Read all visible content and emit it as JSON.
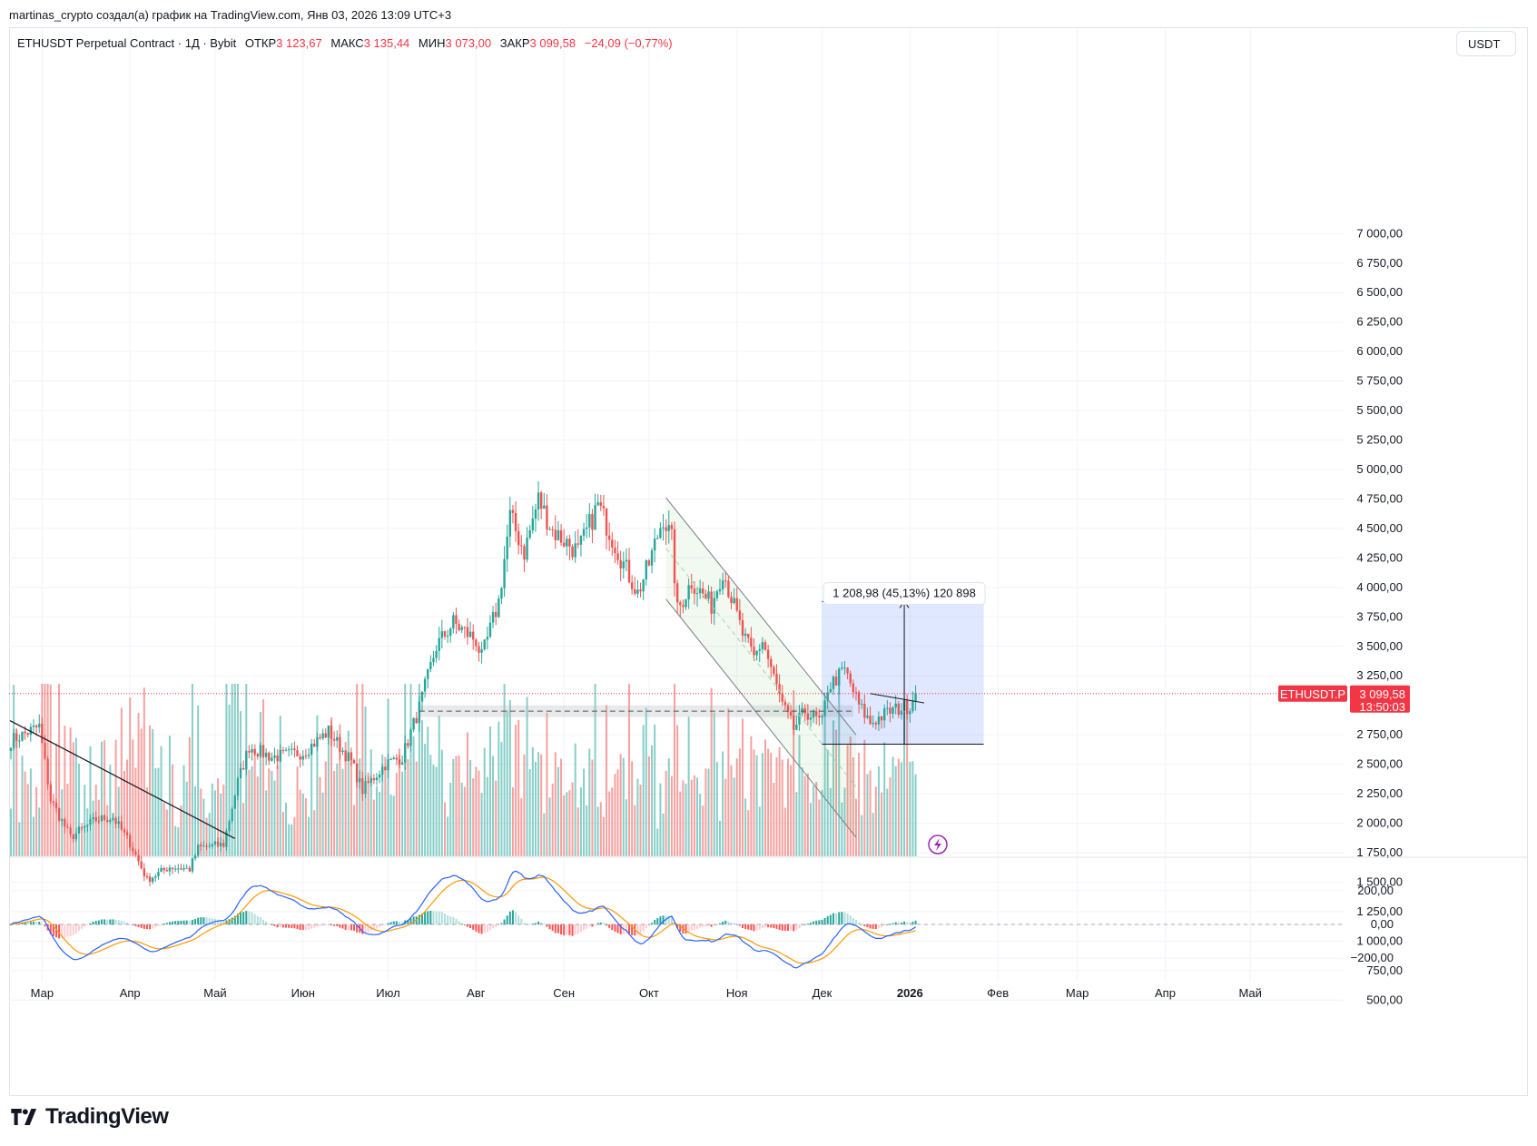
{
  "header": {
    "attribution": "martinas_crypto создал(а) график на TradingView.com, Янв 03, 2026 13:09 UTC+3"
  },
  "legend": {
    "symbol": "ETHUSDT Perpetual Contract · 1Д · Bybit",
    "open_label": "ОТКР",
    "open_value": "3 123,67",
    "high_label": "МАКС",
    "high_value": "3 135,44",
    "low_label": "МИН",
    "low_value": "3 073,00",
    "close_label": "ЗАКР",
    "close_value": "3 099,58",
    "change": "−24,09 (−0,77%)"
  },
  "currency_button": "USDT",
  "price_tag": {
    "symbol": "ETHUSDT.P",
    "price": "3 099,58",
    "countdown": "13:50:03"
  },
  "measure_label": "1 208,98 (45,13%) 120 898",
  "brand": {
    "name": "TradingView"
  },
  "colors": {
    "up": "#26a69a",
    "down": "#ef5350",
    "accent": "#f23645",
    "macd": "#2962ff",
    "signal": "#ff9800"
  },
  "chart_data": {
    "type": "candlestick",
    "price_axis_ticks": [
      "7 000,00",
      "6 750,00",
      "6 500,00",
      "6 250,00",
      "6 000,00",
      "5 750,00",
      "5 500,00",
      "5 250,00",
      "5 000,00",
      "4 750,00",
      "4 500,00",
      "4 250,00",
      "4 000,00",
      "3 750,00",
      "3 500,00",
      "3 250,00",
      "2 750,00",
      "2 500,00",
      "2 250,00",
      "2 000,00",
      "1 750,00",
      "1 500,00",
      "1 250,00",
      "1 000,00",
      "750,00",
      "500,00"
    ],
    "price_axis_values": [
      7000,
      6750,
      6500,
      6250,
      6000,
      5750,
      5500,
      5250,
      5000,
      4750,
      4500,
      4250,
      4000,
      3750,
      3500,
      3250,
      2750,
      2500,
      2250,
      2000,
      1750,
      1500,
      1250,
      1000,
      750,
      500
    ],
    "macd_axis_ticks": [
      "200,00",
      "0,00",
      "−200,00"
    ],
    "macd_axis_values": [
      200,
      0,
      -200
    ],
    "time_axis_labels": [
      "Мар",
      "Апр",
      "Май",
      "Июн",
      "Июл",
      "Авг",
      "Сен",
      "Окт",
      "Ноя",
      "Дек",
      "2026",
      "Фев",
      "Мар",
      "Апр",
      "Май"
    ],
    "time_axis_dates": [
      "2025-03-01",
      "2025-04-01",
      "2025-05-01",
      "2025-06-01",
      "2025-07-01",
      "2025-08-01",
      "2025-09-01",
      "2025-10-01",
      "2025-11-01",
      "2025-12-01",
      "2026-01-01",
      "2026-02-01",
      "2026-03-01",
      "2026-04-01",
      "2026-05-01"
    ],
    "start_date": "2025-02-18",
    "end_date": "2026-01-03",
    "last_price": 3099.58,
    "anchors": [
      [
        "2025-02-18",
        2700
      ],
      [
        "2025-02-28",
        2820
      ],
      [
        "2025-03-04",
        2200
      ],
      [
        "2025-03-11",
        1880
      ],
      [
        "2025-03-20",
        2030
      ],
      [
        "2025-03-26",
        2050
      ],
      [
        "2025-04-01",
        1830
      ],
      [
        "2025-04-07",
        1520
      ],
      [
        "2025-04-15",
        1630
      ],
      [
        "2025-04-22",
        1610
      ],
      [
        "2025-04-25",
        1790
      ],
      [
        "2025-05-04",
        1820
      ],
      [
        "2025-05-09",
        2350
      ],
      [
        "2025-05-13",
        2650
      ],
      [
        "2025-05-21",
        2560
      ],
      [
        "2025-06-01",
        2600
      ],
      [
        "2025-06-10",
        2780
      ],
      [
        "2025-06-18",
        2520
      ],
      [
        "2025-06-22",
        2280
      ],
      [
        "2025-06-30",
        2500
      ],
      [
        "2025-07-06",
        2560
      ],
      [
        "2025-07-12",
        2980
      ],
      [
        "2025-07-18",
        3500
      ],
      [
        "2025-07-24",
        3700
      ],
      [
        "2025-08-01",
        3550
      ],
      [
        "2025-08-03",
        3400
      ],
      [
        "2025-08-09",
        3880
      ],
      [
        "2025-08-13",
        4600
      ],
      [
        "2025-08-18",
        4300
      ],
      [
        "2025-08-23",
        4750
      ],
      [
        "2025-08-28",
        4480
      ],
      [
        "2025-09-06",
        4300
      ],
      [
        "2025-09-13",
        4700
      ],
      [
        "2025-09-22",
        4200
      ],
      [
        "2025-09-27",
        3950
      ],
      [
        "2025-10-01",
        4200
      ],
      [
        "2025-10-06",
        4600
      ],
      [
        "2025-10-09",
        4400
      ],
      [
        "2025-10-11",
        3800
      ],
      [
        "2025-10-16",
        4050
      ],
      [
        "2025-10-23",
        3850
      ],
      [
        "2025-10-27",
        4150
      ],
      [
        "2025-11-03",
        3600
      ],
      [
        "2025-11-07",
        3400
      ],
      [
        "2025-11-10",
        3550
      ],
      [
        "2025-11-17",
        3000
      ],
      [
        "2025-11-21",
        2800
      ],
      [
        "2025-11-25",
        2950
      ],
      [
        "2025-12-01",
        2850
      ],
      [
        "2025-12-03",
        3150
      ],
      [
        "2025-12-09",
        3300
      ],
      [
        "2025-12-14",
        3000
      ],
      [
        "2025-12-18",
        2850
      ],
      [
        "2025-12-25",
        2950
      ],
      [
        "2026-01-01",
        3000
      ],
      [
        "2026-01-03",
        3100
      ]
    ]
  }
}
